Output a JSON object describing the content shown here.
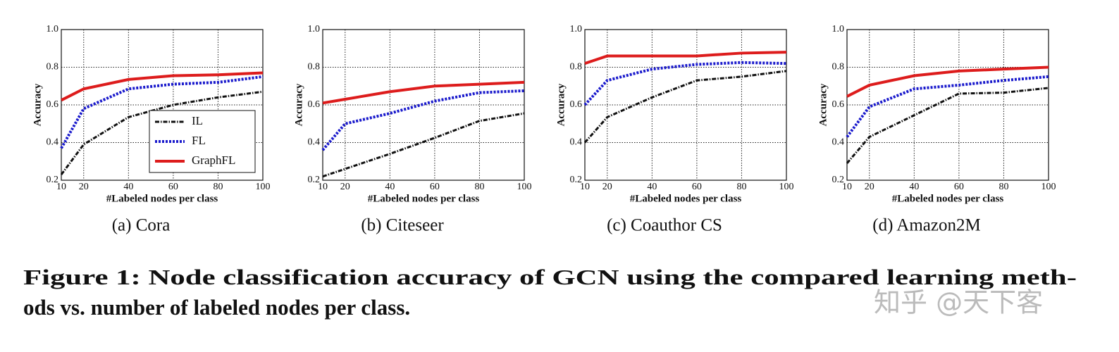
{
  "chart_data": [
    {
      "type": "line",
      "caption": "(a) Cora",
      "xlabel": "#Labeled nodes per class",
      "ylabel": "Accuracy",
      "x": [
        10,
        20,
        40,
        60,
        80,
        100
      ],
      "xlim": [
        10,
        100
      ],
      "xticks": [
        10,
        20,
        40,
        60,
        80,
        100
      ],
      "ylim": [
        0.2,
        1
      ],
      "yticks": [
        0.2,
        0.4,
        0.6,
        0.8,
        {
          "value": 1,
          "label": "1.0"
        }
      ],
      "grid": true,
      "legend": "lower right",
      "series": [
        {
          "name": "IL",
          "color": "#111111",
          "style": "dashdot",
          "values": [
            0.23,
            0.39,
            0.535,
            0.6,
            0.64,
            0.67
          ]
        },
        {
          "name": "FL",
          "color": "#1a1acc",
          "style": "dotted",
          "values": [
            0.37,
            0.58,
            0.685,
            0.71,
            0.72,
            0.75
          ]
        },
        {
          "name": "GraphFL",
          "color": "#dd1c1c",
          "style": "solid",
          "values": [
            0.625,
            0.685,
            0.735,
            0.755,
            0.76,
            0.77
          ]
        }
      ]
    },
    {
      "type": "line",
      "caption": "(b) Citeseer",
      "xlabel": "#Labeled nodes per class",
      "ylabel": "Accuracy",
      "x": [
        10,
        20,
        40,
        60,
        80,
        100
      ],
      "xlim": [
        10,
        100
      ],
      "xticks": [
        10,
        20,
        40,
        60,
        80,
        100
      ],
      "ylim": [
        0.2,
        1
      ],
      "yticks": [
        0.2,
        0.4,
        0.6,
        0.8,
        {
          "value": 1,
          "label": "1.0"
        }
      ],
      "grid": true,
      "series": [
        {
          "color": "#111111",
          "style": "dashdot",
          "values": [
            0.22,
            0.26,
            0.34,
            0.425,
            0.515,
            0.555
          ]
        },
        {
          "color": "#1a1acc",
          "style": "dotted",
          "values": [
            0.36,
            0.5,
            0.555,
            0.62,
            0.665,
            0.675
          ]
        },
        {
          "color": "#dd1c1c",
          "style": "solid",
          "values": [
            0.61,
            0.63,
            0.67,
            0.7,
            0.71,
            0.72
          ]
        }
      ]
    },
    {
      "type": "line",
      "caption": "(c) Coauthor CS",
      "xlabel": "#Labeled nodes per class",
      "ylabel": "Accuracy",
      "x": [
        10,
        20,
        40,
        60,
        80,
        100
      ],
      "xlim": [
        10,
        100
      ],
      "xticks": [
        10,
        20,
        40,
        60,
        80,
        100
      ],
      "ylim": [
        0.2,
        1
      ],
      "yticks": [
        0.2,
        0.4,
        0.6,
        0.8,
        {
          "value": 1,
          "label": "1.0"
        }
      ],
      "grid": true,
      "series": [
        {
          "color": "#111111",
          "style": "dashdot",
          "values": [
            0.4,
            0.535,
            0.64,
            0.73,
            0.75,
            0.78
          ]
        },
        {
          "color": "#1a1acc",
          "style": "dotted",
          "values": [
            0.6,
            0.73,
            0.79,
            0.815,
            0.825,
            0.82
          ]
        },
        {
          "color": "#dd1c1c",
          "style": "solid",
          "values": [
            0.82,
            0.86,
            0.86,
            0.86,
            0.875,
            0.88
          ]
        }
      ]
    },
    {
      "type": "line",
      "caption": "(d) Amazon2M",
      "xlabel": "#Labeled nodes per class",
      "ylabel": "Accuracy",
      "x": [
        10,
        20,
        40,
        60,
        80,
        100
      ],
      "xlim": [
        10,
        100
      ],
      "xticks": [
        10,
        20,
        40,
        60,
        80,
        100
      ],
      "ylim": [
        0.2,
        1
      ],
      "yticks": [
        0.2,
        0.4,
        0.6,
        0.8,
        {
          "value": 1,
          "label": "1.0"
        }
      ],
      "grid": true,
      "series": [
        {
          "color": "#111111",
          "style": "dashdot",
          "values": [
            0.29,
            0.43,
            0.545,
            0.66,
            0.665,
            0.69
          ]
        },
        {
          "color": "#1a1acc",
          "style": "dotted",
          "values": [
            0.43,
            0.59,
            0.685,
            0.705,
            0.73,
            0.75
          ]
        },
        {
          "color": "#dd1c1c",
          "style": "solid",
          "values": [
            0.645,
            0.705,
            0.755,
            0.78,
            0.79,
            0.8
          ]
        }
      ]
    }
  ],
  "figure_caption": [
    "Figure 1: Node classification accuracy of GCN using the compared learning meth-",
    "ods vs. number of labeled nodes per class."
  ],
  "watermark": "知乎 @天下客"
}
